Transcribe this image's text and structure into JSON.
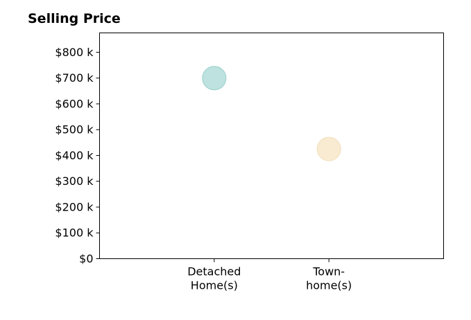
{
  "chart_data": {
    "type": "scatter",
    "title": "Selling Price",
    "xlabel": "",
    "ylabel": "",
    "categories": [
      [
        "Detached",
        "Home(s)"
      ],
      [
        "Town-",
        "home(s)"
      ]
    ],
    "x_range": [
      0,
      3
    ],
    "ylim": [
      0,
      875000
    ],
    "y_ticks": [
      0,
      100000,
      200000,
      300000,
      400000,
      500000,
      600000,
      700000,
      800000
    ],
    "y_tick_labels": [
      "$0",
      "$100 k",
      "$200 k",
      "$300 k",
      "$400 k",
      "$500 k",
      "$600 k",
      "$700 k",
      "$800 k"
    ],
    "grid": false,
    "legend": "none",
    "points": [
      {
        "category_index": 0,
        "value": 700000,
        "color": "#bde2df",
        "edge": "#98cfc9"
      },
      {
        "category_index": 1,
        "value": 425000,
        "color": "#f8ebd1",
        "edge": "#f0dfba"
      }
    ]
  }
}
